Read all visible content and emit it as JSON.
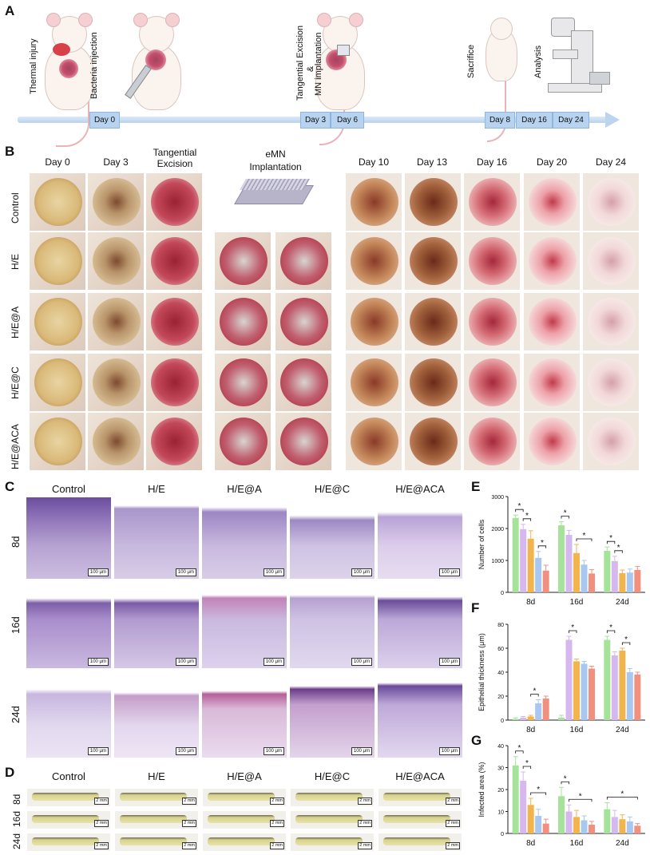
{
  "panels": {
    "a": "A",
    "b": "B",
    "c": "C",
    "d": "D",
    "e": "E",
    "f": "F",
    "g": "G"
  },
  "panel_a": {
    "steps": [
      "Thermal injury",
      "Bacteria injection",
      "Tangential Excision",
      "&",
      "MN implantation",
      "Sacrifice",
      "Analysis"
    ],
    "days": [
      "Day 0",
      "Day 3",
      "Day 6",
      "Day 8",
      "Day 16",
      "Day 24"
    ]
  },
  "panel_b": {
    "col_left": [
      "Day 0",
      "Day 3",
      "Tangential",
      "Excision"
    ],
    "emn": [
      "eMN",
      "Implantation"
    ],
    "col_right": [
      "Day 10",
      "Day 13",
      "Day 16",
      "Day 20",
      "Day 24"
    ],
    "rows": [
      "Control",
      "H/E",
      "H/E@A",
      "H/E@C",
      "H/E@ACA"
    ]
  },
  "panel_c": {
    "cols": [
      "Control",
      "H/E",
      "H/E@A",
      "H/E@C",
      "H/E@ACA"
    ],
    "rows": [
      "8d",
      "16d",
      "24d"
    ],
    "scale": "100 μm"
  },
  "panel_d": {
    "cols": [
      "Control",
      "H/E",
      "H/E@A",
      "H/E@C",
      "H/E@ACA"
    ],
    "rows": [
      "8d",
      "16d",
      "24d"
    ],
    "scale": "2 mm"
  },
  "colors": {
    "Control": "#a6e39a",
    "H/E": "#d7b8ee",
    "H/E@A": "#f2b54e",
    "H/E@C": "#a9c8ef",
    "H/E@ACA": "#f29080"
  },
  "chart_data": [
    {
      "type": "bar",
      "ylabel": "Number of cells",
      "categories": [
        "8d",
        "16d",
        "24d"
      ],
      "ylim": [
        0,
        3000
      ],
      "yticks": [
        "0",
        "1000",
        "2000",
        "3000"
      ],
      "series": [
        {
          "name": "Control",
          "values": [
            2330,
            2100,
            1300
          ],
          "err": [
            90,
            110,
            120
          ]
        },
        {
          "name": "H/E",
          "values": [
            1980,
            1800,
            980
          ],
          "err": [
            150,
            140,
            150
          ]
        },
        {
          "name": "H/E@A",
          "values": [
            1680,
            1230,
            600
          ],
          "err": [
            250,
            270,
            100
          ]
        },
        {
          "name": "H/E@C",
          "values": [
            1080,
            870,
            620
          ],
          "err": [
            200,
            130,
            110
          ]
        },
        {
          "name": "H/E@ACA",
          "values": [
            680,
            590,
            700
          ],
          "err": [
            170,
            120,
            110
          ]
        }
      ],
      "significance": [
        "*",
        "*",
        "*",
        "*",
        "*",
        "*",
        "*"
      ]
    },
    {
      "type": "bar",
      "ylabel": "Epithelial thickness (μm)",
      "categories": [
        "8d",
        "16d",
        "24d"
      ],
      "ylim": [
        0,
        80
      ],
      "yticks": [
        "0",
        "20",
        "40",
        "60",
        "80"
      ],
      "series": [
        {
          "name": "Control",
          "values": [
            1,
            2,
            67
          ],
          "err": [
            1,
            2,
            3
          ]
        },
        {
          "name": "H/E",
          "values": [
            2,
            67,
            54
          ],
          "err": [
            1,
            3,
            3
          ]
        },
        {
          "name": "H/E@A",
          "values": [
            3,
            49,
            58
          ],
          "err": [
            1,
            2,
            2
          ]
        },
        {
          "name": "H/E@C",
          "values": [
            14,
            47,
            40
          ],
          "err": [
            3,
            2,
            3
          ]
        },
        {
          "name": "H/E@ACA",
          "values": [
            18,
            43,
            38
          ],
          "err": [
            2,
            2,
            2
          ]
        }
      ],
      "significance": [
        "*",
        "*",
        "*",
        "*"
      ]
    },
    {
      "type": "bar",
      "ylabel": "Infected area (%)",
      "categories": [
        "8d",
        "16d",
        "24d"
      ],
      "ylim": [
        0,
        40
      ],
      "yticks": [
        "0",
        "10",
        "20",
        "30",
        "40"
      ],
      "series": [
        {
          "name": "Control",
          "values": [
            31,
            17,
            11
          ],
          "err": [
            4,
            4,
            3
          ]
        },
        {
          "name": "H/E",
          "values": [
            24,
            10,
            7.5
          ],
          "err": [
            4,
            3,
            3
          ]
        },
        {
          "name": "H/E@A",
          "values": [
            13,
            7.5,
            6.5
          ],
          "err": [
            3,
            3,
            2
          ]
        },
        {
          "name": "H/E@C",
          "values": [
            8,
            6,
            5.5
          ],
          "err": [
            3,
            2,
            2
          ]
        },
        {
          "name": "H/E@ACA",
          "values": [
            4.5,
            4,
            3.5
          ],
          "err": [
            2,
            1.5,
            1
          ]
        }
      ],
      "significance": [
        "*",
        "*",
        "*",
        "*",
        "*",
        "*"
      ]
    }
  ]
}
